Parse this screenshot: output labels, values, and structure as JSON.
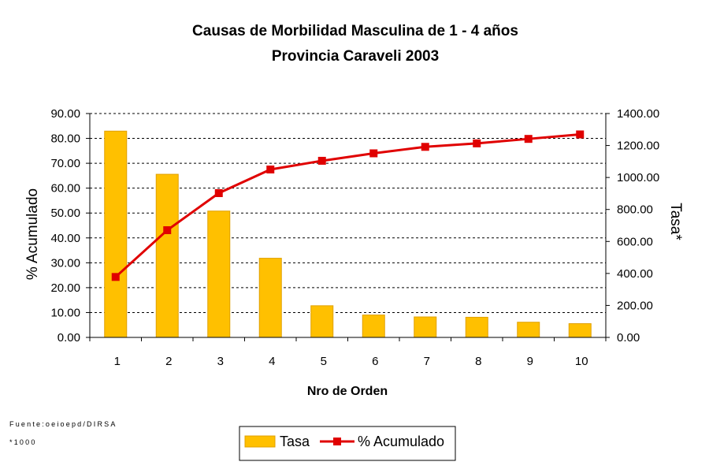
{
  "chart_data": {
    "type": "bar+line",
    "title": "Causas de Morbilidad Masculina de 1 -  4 años",
    "subtitle": "Provincia Caraveli 2003",
    "xlabel": "Nro de Orden",
    "ylabel_left": "% Acumulado",
    "ylabel_right": "Tasa*",
    "categories": [
      "1",
      "2",
      "3",
      "4",
      "5",
      "6",
      "7",
      "8",
      "9",
      "10"
    ],
    "series": [
      {
        "name": "Tasa",
        "type": "bar",
        "axis": "right",
        "color": "#FFC000",
        "edge_color": "#E0A000",
        "values": [
          1290,
          1020,
          790,
          495,
          198,
          140,
          128,
          126,
          95,
          86
        ]
      },
      {
        "name": "% Acumulado",
        "type": "line",
        "axis": "left",
        "color": "#E00000",
        "marker": "square",
        "values": [
          24.3,
          43.1,
          58.0,
          67.5,
          71.0,
          74.0,
          76.6,
          78.0,
          79.8,
          81.6
        ]
      }
    ],
    "ylim_left": [
      0,
      90
    ],
    "yticks_left": [
      "0.00",
      "10.00",
      "20.00",
      "30.00",
      "40.00",
      "50.00",
      "60.00",
      "70.00",
      "80.00",
      "90.00"
    ],
    "ylim_right": [
      0,
      1400
    ],
    "yticks_right": [
      "0.00",
      "200.00",
      "400.00",
      "600.00",
      "800.00",
      "1000.00",
      "1200.00",
      "1400.00"
    ],
    "grid": "horizontal dashed",
    "legend_position": "bottom"
  },
  "notes": {
    "source": "Fuente:oeioepd/DIRSA",
    "footnote": "*1000"
  },
  "legend": {
    "bar_label": "Tasa",
    "line_label": "% Acumulado"
  }
}
